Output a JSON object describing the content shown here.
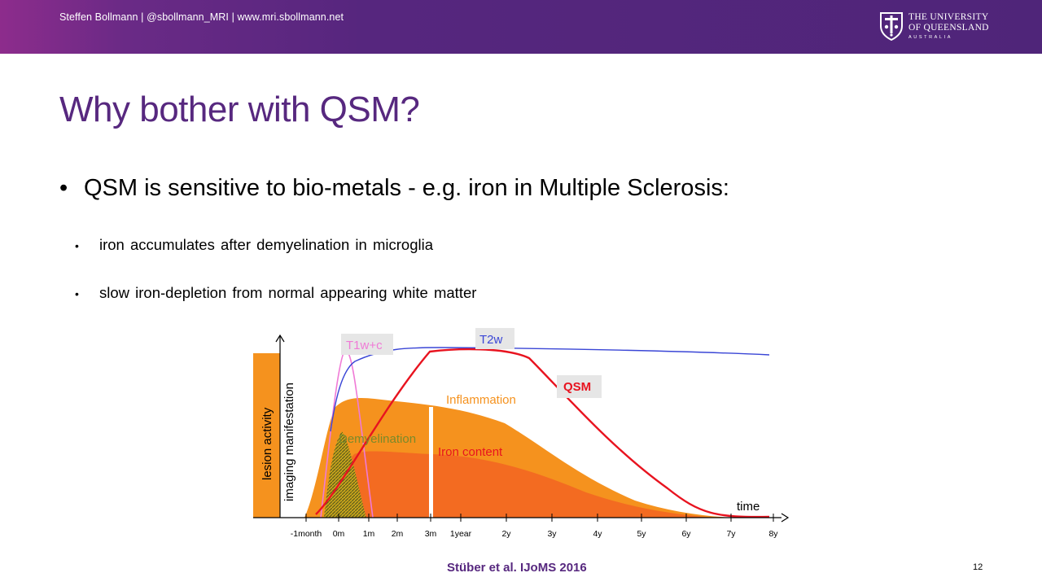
{
  "header": {
    "credit": "Steffen Bollmann | @sbollmann_MRI  | www.mri.sbollmann.net",
    "logo_line1": "THE UNIVERSITY",
    "logo_line2": "OF QUEENSLAND",
    "logo_line3": "AUSTRALIA",
    "logo_icon": "shield-crest-icon"
  },
  "slide": {
    "title": "Why bother with QSM?",
    "bullet": "QSM is sensitive to bio-metals - e.g. iron in Multiple Sclerosis:",
    "sub_bullets": [
      "iron accumulates after demyelination in microglia",
      "slow iron-depletion from normal appearing white matter"
    ],
    "citation": "Stüber et al. IJoMS 2016",
    "page_number": "12"
  },
  "colors": {
    "purple": "#57287f",
    "orange": "#f5921e",
    "orange_dark": "#f36b21",
    "red": "#e8131f",
    "blue": "#3a46d6",
    "pink": "#f07ad6",
    "olive": "#7a8a2a"
  },
  "chart_data": {
    "type": "area",
    "title": "",
    "xlabel": "time",
    "ylabel_outer": "lesion activity",
    "ylabel_inner": "imaging manifestation",
    "x_ticks": [
      "-1month",
      "0m",
      "1m",
      "2m",
      "3m",
      "1year",
      "2y",
      "3y",
      "4y",
      "5y",
      "6y",
      "7y",
      "8y"
    ],
    "series": [
      {
        "name": "T1w+c",
        "kind": "line"
      },
      {
        "name": "T2w",
        "kind": "line"
      },
      {
        "name": "QSM",
        "kind": "line"
      },
      {
        "name": "Inflammation",
        "kind": "area"
      },
      {
        "name": "Demyelination",
        "kind": "area"
      },
      {
        "name": "Iron content",
        "kind": "area"
      }
    ]
  }
}
